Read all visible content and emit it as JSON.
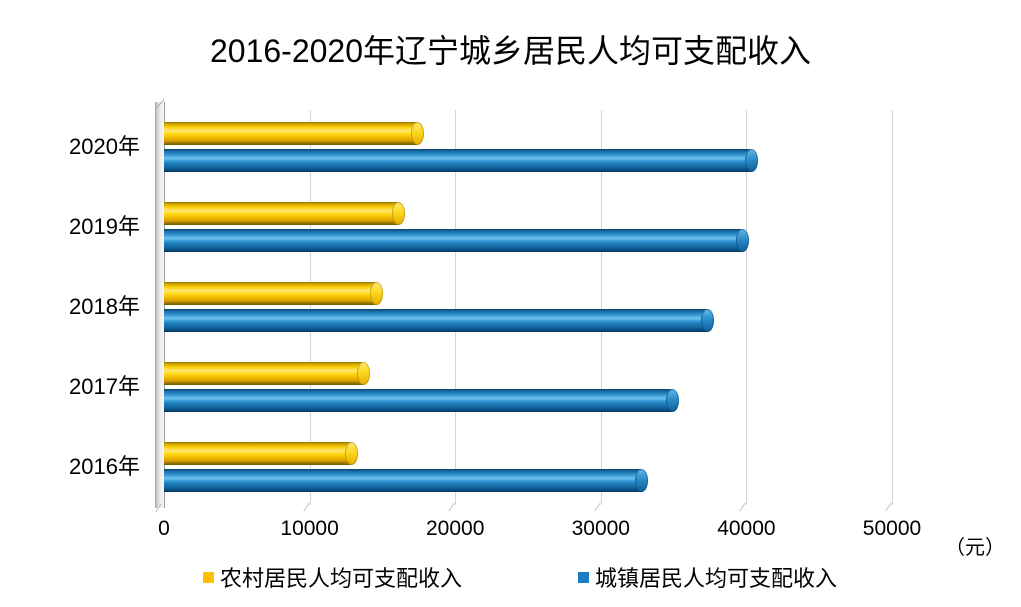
{
  "title": "2016-2020年辽宁城乡居民人均可支配收入",
  "unit_label": "（元）",
  "colors": {
    "rural_series": "#FFC000",
    "urban_series": "#1D7DC4",
    "gridline": "#D4D4D4",
    "text": "#000000"
  },
  "legend": {
    "rural_label": "农村居民人均可支配收入",
    "urban_label": "城镇居民人均可支配收入"
  },
  "chart_data": {
    "type": "bar",
    "orientation": "horizontal",
    "style": "3d-cylinder",
    "title": "2016-2020年辽宁城乡居民人均可支配收入",
    "categories": [
      "2020年",
      "2019年",
      "2018年",
      "2017年",
      "2016年"
    ],
    "series": [
      {
        "key": "rural",
        "name": "农村居民人均可支配收入",
        "color": "#FFC000",
        "values": [
          17450,
          16108,
          14656,
          13747,
          12881
        ]
      },
      {
        "key": "urban",
        "name": "城镇居民人均可支配收入",
        "color": "#1D7DC4",
        "values": [
          40376,
          39777,
          37342,
          34993,
          32860
        ]
      }
    ],
    "xlabel": "（元）",
    "xlim": [
      0,
      50000
    ],
    "x_ticks": [
      0,
      10000,
      20000,
      30000,
      40000,
      50000
    ],
    "grid": true,
    "legend_position": "bottom"
  }
}
